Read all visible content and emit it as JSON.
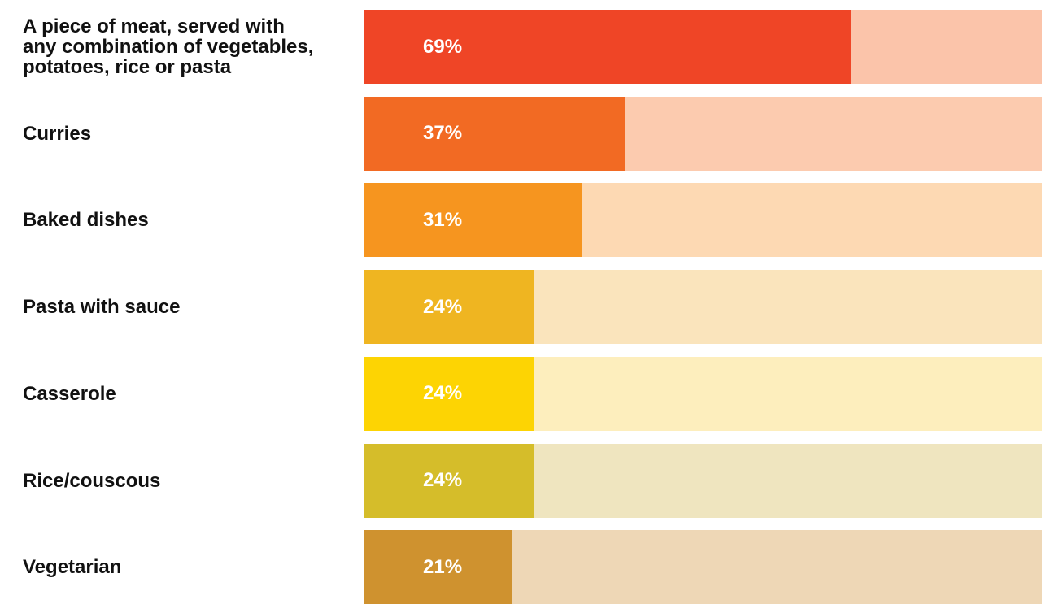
{
  "chart_data": {
    "type": "bar",
    "orientation": "horizontal",
    "categories": [
      "A piece of meat, served with\nany combination of vegetables,\npotatoes, rice or pasta",
      "Curries",
      "Baked dishes",
      "Pasta with sauce",
      "Casserole",
      "Rice/couscous",
      "Vegetarian"
    ],
    "values": [
      69,
      37,
      31,
      24,
      24,
      24,
      21
    ],
    "value_labels": [
      "69%",
      "37%",
      "31%",
      "24%",
      "24%",
      "24%",
      "21%"
    ],
    "unit": "%",
    "xlim": [
      0,
      96
    ],
    "bar_colors": [
      "#ef4526",
      "#f26a23",
      "#f6951f",
      "#efb521",
      "#fdd403",
      "#d5bd2a",
      "#cf922f"
    ],
    "track_colors": [
      "#fbc4aa",
      "#fccbaf",
      "#fdd9b3",
      "#fae4bc",
      "#fdeebd",
      "#efe5bf",
      "#eed7b6"
    ],
    "grid": false,
    "legend": "none"
  }
}
